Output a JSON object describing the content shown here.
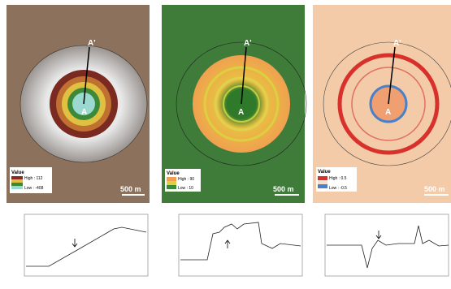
{
  "panels": [
    {
      "top_label": "A'",
      "center_label": "A",
      "legend": {
        "title": "Value",
        "high": "High : 112",
        "low": "Low : -408"
      },
      "scale": "500 m"
    },
    {
      "top_label": "A'",
      "center_label": "A",
      "legend": {
        "title": "Value",
        "high": "High : 90",
        "low": "Low : 10"
      },
      "scale": "500 m"
    },
    {
      "top_label": "A'",
      "center_label": "A",
      "legend": {
        "title": "Value",
        "high": "High : 0.5",
        "low": "Low : -0.5"
      },
      "scale": "500 m"
    }
  ]
}
